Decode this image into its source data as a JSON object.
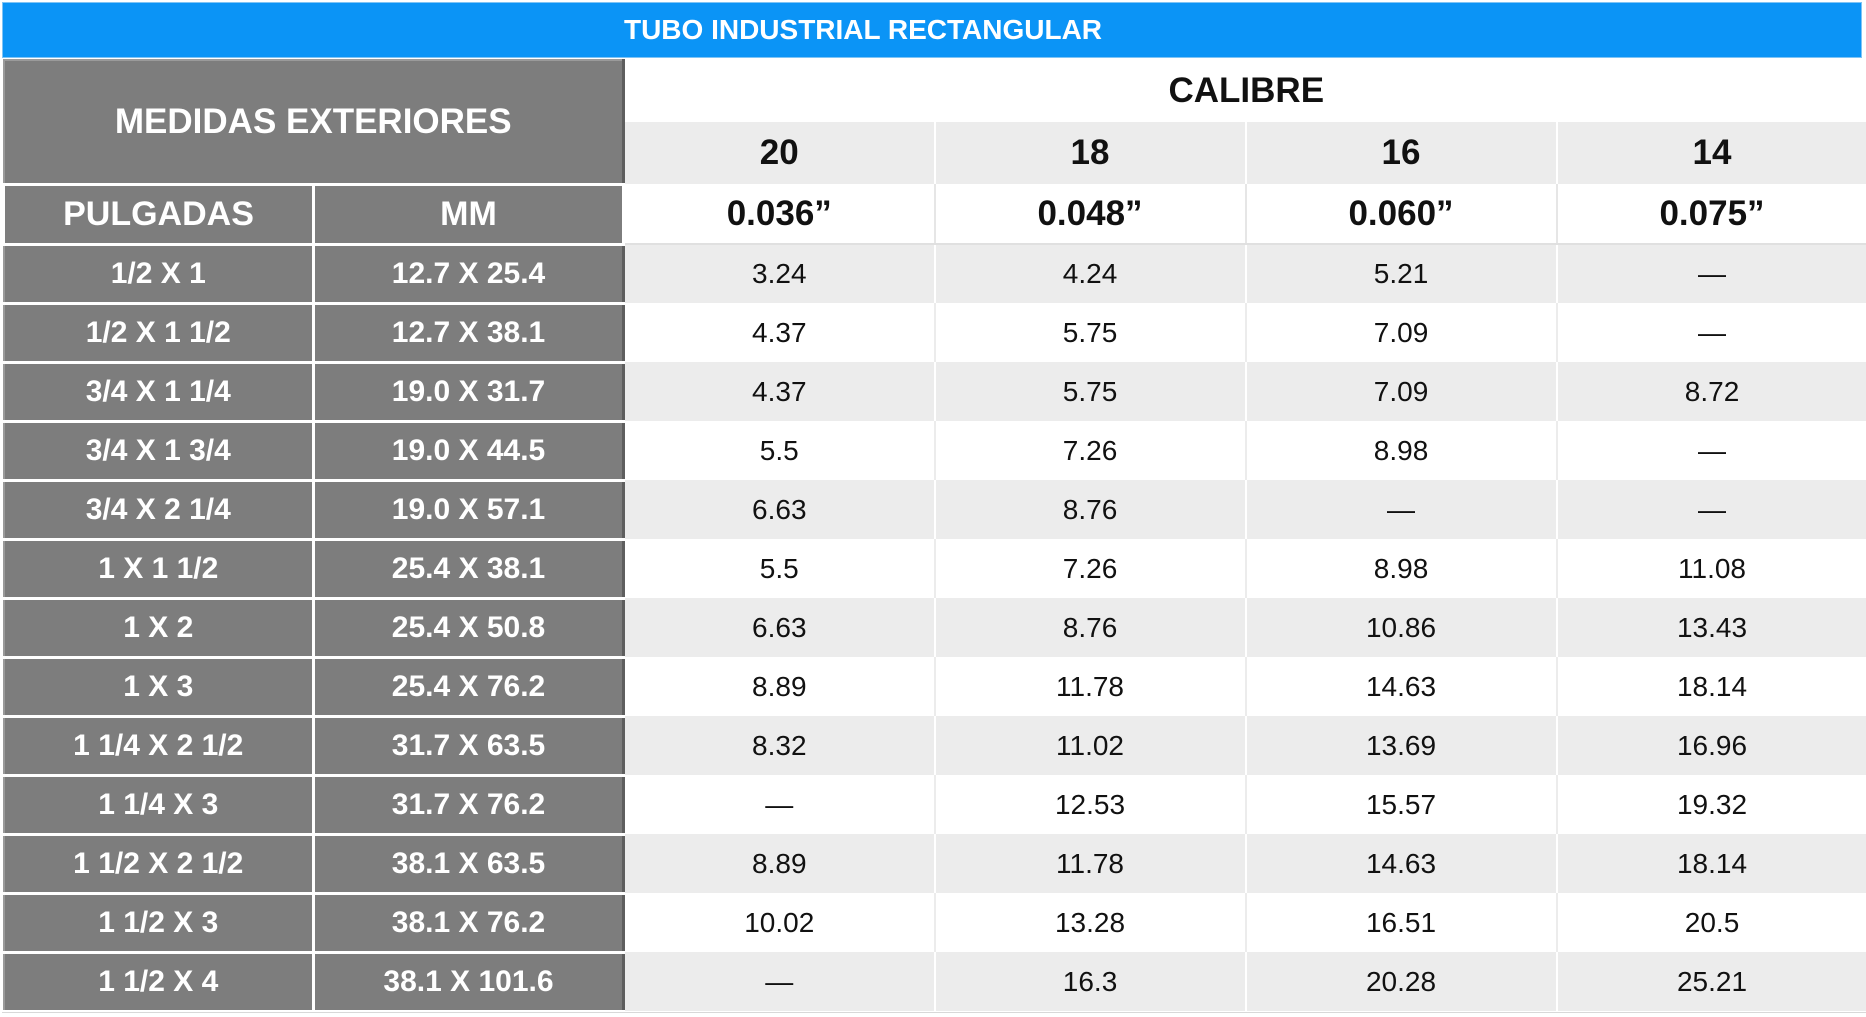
{
  "title": "TUBO INDUSTRIAL RECTANGULAR",
  "header": {
    "medidas": "MEDIDAS EXTERIORES",
    "calibre": "CALIBRE",
    "pulgadas": "PULGADAS",
    "mm": "MM",
    "gauges": [
      "20",
      "18",
      "16",
      "14"
    ],
    "thickness": [
      "0.036”",
      "0.048”",
      "0.060”",
      "0.075”"
    ]
  },
  "rows": [
    {
      "inches": "1/2 X 1",
      "mm": "12.7 X 25.4",
      "values": [
        "3.24",
        "4.24",
        "5.21",
        "—"
      ]
    },
    {
      "inches": "1/2 X 1 1/2",
      "mm": "12.7 X 38.1",
      "values": [
        "4.37",
        "5.75",
        "7.09",
        "—"
      ]
    },
    {
      "inches": "3/4 X 1 1/4",
      "mm": "19.0 X 31.7",
      "values": [
        "4.37",
        "5.75",
        "7.09",
        "8.72"
      ]
    },
    {
      "inches": "3/4 X 1 3/4",
      "mm": "19.0 X 44.5",
      "values": [
        "5.5",
        "7.26",
        "8.98",
        "—"
      ]
    },
    {
      "inches": "3/4 X 2 1/4",
      "mm": "19.0 X 57.1",
      "values": [
        "6.63",
        "8.76",
        "—",
        "—"
      ]
    },
    {
      "inches": "1 X 1 1/2",
      "mm": "25.4 X 38.1",
      "values": [
        "5.5",
        "7.26",
        "8.98",
        "11.08"
      ]
    },
    {
      "inches": "1 X 2",
      "mm": "25.4 X 50.8",
      "values": [
        "6.63",
        "8.76",
        "10.86",
        "13.43"
      ]
    },
    {
      "inches": "1 X 3",
      "mm": "25.4 X 76.2",
      "values": [
        "8.89",
        "11.78",
        "14.63",
        "18.14"
      ]
    },
    {
      "inches": "1 1/4 X 2 1/2",
      "mm": "31.7 X 63.5",
      "values": [
        "8.32",
        "11.02",
        "13.69",
        "16.96"
      ]
    },
    {
      "inches": "1 1/4 X 3",
      "mm": "31.7 X 76.2",
      "values": [
        "—",
        "12.53",
        "15.57",
        "19.32"
      ]
    },
    {
      "inches": "1 1/2 X 2 1/2",
      "mm": "38.1 X 63.5",
      "values": [
        "8.89",
        "11.78",
        "14.63",
        "18.14"
      ]
    },
    {
      "inches": "1 1/2 X 3",
      "mm": "38.1 X 76.2",
      "values": [
        "10.02",
        "13.28",
        "16.51",
        "20.5"
      ]
    },
    {
      "inches": "1 1/2 X 4",
      "mm": "38.1 X 101.6",
      "values": [
        "—",
        "16.3",
        "20.28",
        "25.21"
      ]
    }
  ]
}
